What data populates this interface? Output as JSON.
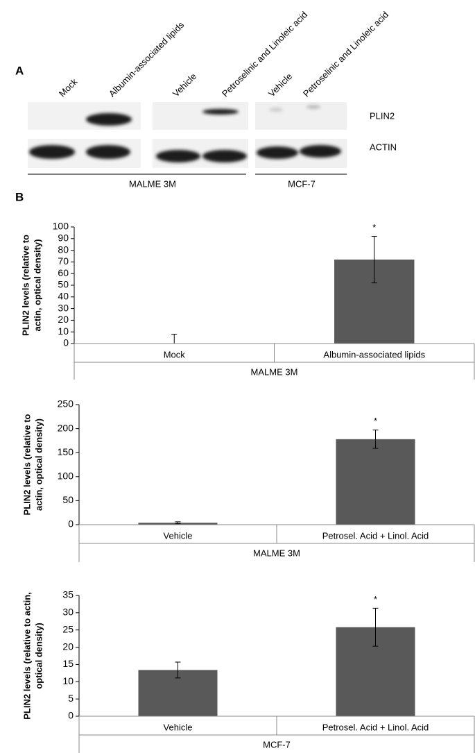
{
  "panel_a": {
    "label": "A",
    "lanes": [
      "Mock",
      "Albumin-associated lipids",
      "Vehicle",
      "Petroselinic and Linoleic acid",
      "Vehicle",
      "Petroselinic and Linoleic acid"
    ],
    "rows": [
      "PLIN2",
      "ACTIN"
    ],
    "groups": [
      "MALME 3M",
      "MCF-7"
    ]
  },
  "panel_b_label": "B",
  "chart_data": [
    {
      "type": "bar",
      "ylabel_lines": [
        "PLIN2 levels (relative to",
        "actin, optical density)"
      ],
      "categories": [
        "Mock",
        "Albumin-associated lipids"
      ],
      "group": "MALME 3M",
      "values": [
        0,
        72
      ],
      "errors": [
        8,
        20
      ],
      "significance": [
        null,
        "*"
      ],
      "color": "#595959",
      "ylim": [
        0,
        100
      ],
      "yticks": [
        0,
        10,
        20,
        30,
        40,
        50,
        60,
        70,
        80,
        90,
        100
      ]
    },
    {
      "type": "bar",
      "ylabel_lines": [
        "PLIN2 levels (relative to",
        "actin, optical density)"
      ],
      "categories": [
        "Vehicle",
        "Petrosel. Acid + Linol. Acid"
      ],
      "group": "MALME 3M",
      "values": [
        4,
        178
      ],
      "errors": [
        2,
        19
      ],
      "significance": [
        null,
        "*"
      ],
      "color": "#595959",
      "ylim": [
        0,
        250
      ],
      "yticks": [
        0,
        50,
        100,
        150,
        200,
        250
      ]
    },
    {
      "type": "bar",
      "ylabel_lines": [
        "PLIN2 levels (relative to actin,",
        "optical density)"
      ],
      "categories": [
        "Vehicle",
        "Petrosel. Acid + Linol. Acid"
      ],
      "group": "MCF-7",
      "values": [
        13.4,
        25.8
      ],
      "errors": [
        2.3,
        5.5
      ],
      "significance": [
        null,
        "*"
      ],
      "color": "#595959",
      "ylim": [
        0,
        35
      ],
      "yticks": [
        0,
        5,
        10,
        15,
        20,
        25,
        30,
        35
      ]
    }
  ]
}
